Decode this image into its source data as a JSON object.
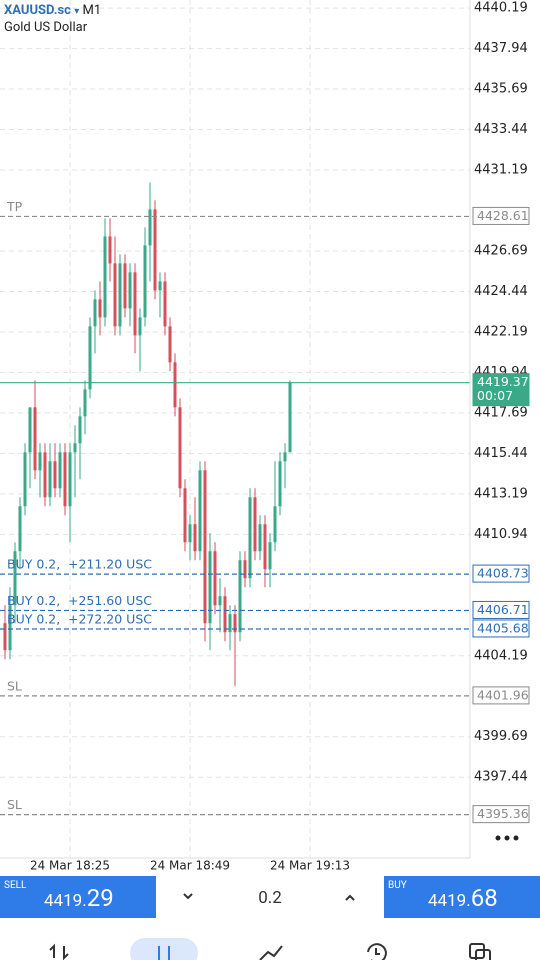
{
  "header": {
    "symbol": "XAUUSD.sc",
    "arrow": "▾",
    "timeframe": "M1",
    "description": "Gold US Dollar"
  },
  "chart_data": {
    "type": "candlestick",
    "grid": true,
    "up_color": "#3aa987",
    "down_color": "#d4505b",
    "x": [
      0,
      1,
      2,
      3,
      4,
      5,
      6,
      7,
      8,
      9,
      10,
      11,
      12,
      13,
      14,
      15,
      16,
      17,
      18,
      19,
      20,
      21,
      22,
      23,
      24,
      25,
      26,
      27,
      28,
      29,
      30,
      31,
      32,
      33,
      34,
      35,
      36,
      37,
      38,
      39,
      40,
      41,
      42,
      43,
      44,
      45,
      46,
      47,
      48,
      49,
      50,
      51,
      52,
      53,
      54,
      55,
      56,
      57
    ],
    "open": [
      4406,
      4404.5,
      4407,
      4410,
      4412.5,
      4415.5,
      4418,
      4414.5,
      4415.5,
      4413,
      4415,
      4413.5,
      4415.5,
      4412.5,
      4415.5,
      4416,
      4417.5,
      4419,
      4422.5,
      4424,
      4423,
      4427.5,
      4426,
      4422.5,
      4426,
      4423.5,
      4425.5,
      4422,
      4423,
      4427,
      4429,
      4424.5,
      4425,
      4422.5,
      4420.5,
      4418,
      4413.5,
      4410.5,
      4411.5,
      4410,
      4414.5,
      4406,
      4410,
      4407,
      4407.5,
      4405.5,
      4406.5,
      4405.5,
      4409.5,
      4408.5,
      4413,
      4410,
      4411.5,
      4409,
      4410.5,
      4412.5,
      4415,
      4415.5
    ],
    "high": [
      4407,
      4408,
      4410.5,
      4413,
      4416,
      4418,
      4419.5,
      4416,
      4416,
      4416,
      4416,
      4416,
      4416,
      4416,
      4417,
      4418,
      4419.5,
      4423,
      4424.5,
      4425,
      4428.5,
      4428.5,
      4427.5,
      4426.5,
      4426.5,
      4426,
      4426,
      4423.5,
      4428,
      4430.5,
      4429.5,
      4425.5,
      4425.5,
      4423,
      4421,
      4418.5,
      4414,
      4412,
      4413,
      4415,
      4415,
      4411,
      4410.5,
      4408.5,
      4408,
      4407,
      4407,
      4410,
      4410,
      4413.5,
      4413.5,
      4412,
      4412,
      4411,
      4415,
      4415.5,
      4416,
      4419.5
    ],
    "low": [
      4404,
      4404,
      4406,
      4409,
      4412,
      4413.5,
      4414,
      4413,
      4412.5,
      4412.5,
      4413,
      4413,
      4412,
      4410.5,
      4413,
      4414,
      4416.5,
      4418.5,
      4421,
      4422,
      4422.5,
      4425,
      4422,
      4422,
      4423,
      4422.5,
      4421,
      4420,
      4422.5,
      4425,
      4424,
      4423,
      4422,
      4420,
      4417.5,
      4413,
      4410,
      4409.5,
      4409.5,
      4409.5,
      4405,
      4404.5,
      4406.5,
      4405.5,
      4405,
      4404.5,
      4402.5,
      4405,
      4408,
      4408,
      4409.5,
      4409.5,
      4408,
      4408,
      4410,
      4412,
      4413.5,
      4415.5
    ],
    "close": [
      4404.5,
      4407,
      4410,
      4412.5,
      4415.5,
      4418,
      4414.5,
      4415.5,
      4413,
      4415,
      4413.5,
      4415.5,
      4412.5,
      4415.5,
      4416,
      4417.5,
      4419,
      4422.5,
      4424,
      4423,
      4427.5,
      4426,
      4422.5,
      4426,
      4423.5,
      4425.5,
      4422,
      4423,
      4427,
      4429,
      4424.5,
      4425,
      4422.5,
      4420.5,
      4418,
      4413.5,
      4410.5,
      4411.5,
      4410,
      4414.5,
      4406,
      4410,
      4407,
      4407.5,
      4405.5,
      4406.5,
      4405.5,
      4409.5,
      4408.5,
      4413,
      4410,
      4411.5,
      4409,
      4410.5,
      4412.5,
      4415,
      4415.5,
      4419.37
    ],
    "xlim": [
      -1,
      93
    ],
    "xticks": [
      {
        "value": 13,
        "label": "24 Mar 18:25"
      },
      {
        "value": 37,
        "label": "24 Mar 18:49"
      },
      {
        "value": 61,
        "label": "24 Mar 19:13"
      }
    ],
    "ylim": [
      4392.95,
      4440.64
    ],
    "yticks": [
      4440.19,
      4437.94,
      4435.69,
      4433.44,
      4431.19,
      4426.69,
      4424.44,
      4422.19,
      4419.94,
      4417.69,
      4415.44,
      4413.19,
      4410.94,
      4404.19,
      4399.69,
      4397.44
    ],
    "lines": [
      {
        "price": 4428.61,
        "tag": "TP",
        "color": "#8a8a8a",
        "dashed": true
      },
      {
        "price": 4419.37,
        "timer": "00:07",
        "color": "#3aa987",
        "dashed": false
      },
      {
        "price": 4408.73,
        "tag": "BUY 0.2,",
        "profit": "+211.20 USC",
        "color": "#2f6db5",
        "dashed": true
      },
      {
        "price": 4406.71,
        "tag": "BUY 0.2,",
        "profit": "+251.60 USC",
        "color": "#2f6db5",
        "dashed": true
      },
      {
        "price": 4405.68,
        "tag": "BUY 0.2,",
        "profit": "+272.20 USC",
        "color": "#2f6db5",
        "dashed": true
      },
      {
        "price": 4401.96,
        "tag": "SL",
        "color": "#8a8a8a",
        "dashed": true
      },
      {
        "price": 4395.36,
        "tag": "SL",
        "color": "#8a8a8a",
        "dashed": true
      }
    ]
  },
  "trade_bar": {
    "sell_label": "SELL",
    "sell_main": "4419.",
    "sell_big": "29",
    "lot": "0.2",
    "buy_label": "BUY",
    "buy_main": "4419.",
    "buy_big": "68"
  }
}
